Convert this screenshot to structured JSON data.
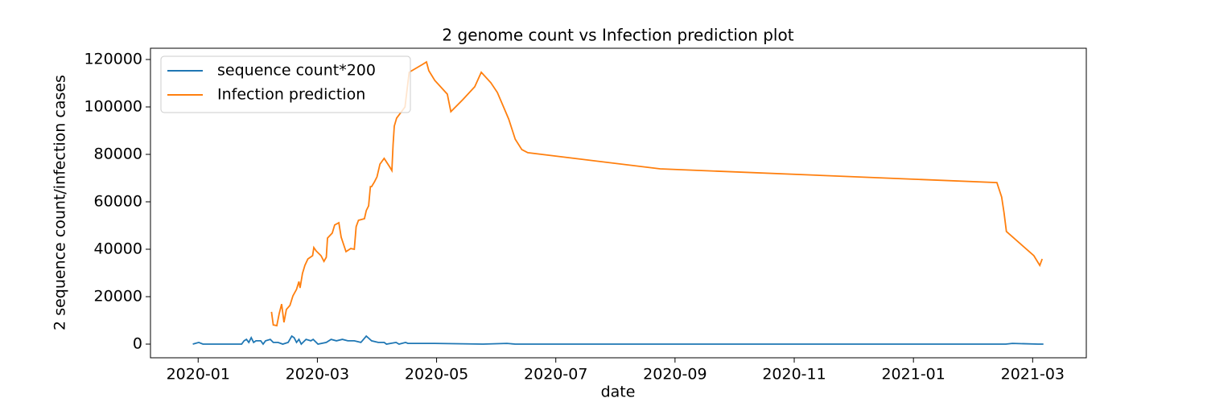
{
  "chart_data": {
    "type": "line",
    "title": "2 genome count vs Infection prediction plot",
    "xlabel": "date",
    "ylabel": "2 sequence count/infection cases",
    "xlim": [
      -0.8,
      14.9
    ],
    "xticks": [
      {
        "value": 0,
        "label": "2020-01"
      },
      {
        "value": 2,
        "label": "2020-03"
      },
      {
        "value": 4,
        "label": "2020-05"
      },
      {
        "value": 6,
        "label": "2020-07"
      },
      {
        "value": 8,
        "label": "2020-09"
      },
      {
        "value": 10,
        "label": "2020-11"
      },
      {
        "value": 12,
        "label": "2021-01"
      },
      {
        "value": 14,
        "label": "2021-03"
      }
    ],
    "ylim": [
      -5760,
      124750
    ],
    "yticks": [
      0,
      20000,
      40000,
      60000,
      80000,
      100000,
      120000
    ],
    "legend": "upper left",
    "series": [
      {
        "name": "sequence count*200",
        "color": "#1f77b4",
        "x": [
          -0.09,
          0.01,
          0.08,
          0.73,
          0.77,
          0.81,
          0.85,
          0.89,
          0.93,
          0.97,
          1.05,
          1.09,
          1.13,
          1.21,
          1.26,
          1.34,
          1.42,
          1.51,
          1.57,
          1.61,
          1.65,
          1.69,
          1.73,
          1.81,
          1.89,
          1.93,
          2.01,
          2.15,
          2.23,
          2.32,
          2.42,
          2.51,
          2.62,
          2.73,
          2.82,
          2.91,
          3.02,
          3.12,
          3.16,
          3.32,
          3.37,
          3.48,
          3.52,
          3.97,
          4.78,
          5.18,
          5.32,
          13.55,
          13.66,
          14.09,
          14.18
        ],
        "values": [
          0,
          700,
          0,
          0,
          1400,
          2000,
          700,
          2700,
          700,
          1400,
          1400,
          0,
          1400,
          2000,
          700,
          700,
          0,
          700,
          3400,
          2700,
          700,
          2000,
          0,
          2000,
          1400,
          2000,
          0,
          700,
          2000,
          1400,
          2000,
          1400,
          1400,
          700,
          3400,
          1400,
          700,
          700,
          0,
          700,
          0,
          700,
          300,
          300,
          0,
          300,
          0,
          0,
          300,
          0,
          0
        ]
      },
      {
        "name": "Infection prediction",
        "color": "#ff7f0e",
        "x": [
          1.23,
          1.26,
          1.32,
          1.36,
          1.4,
          1.44,
          1.48,
          1.54,
          1.59,
          1.65,
          1.69,
          1.71,
          1.75,
          1.79,
          1.84,
          1.92,
          1.94,
          1.98,
          2.06,
          2.11,
          2.15,
          2.17,
          2.25,
          2.29,
          2.36,
          2.4,
          2.48,
          2.56,
          2.62,
          2.65,
          2.69,
          2.79,
          2.82,
          2.86,
          2.89,
          2.91,
          2.96,
          3.0,
          3.05,
          3.12,
          3.21,
          3.25,
          3.27,
          3.29,
          3.33,
          3.47,
          3.54,
          3.77,
          3.83,
          3.87,
          3.97,
          4.18,
          4.24,
          4.44,
          4.64,
          4.75,
          4.91,
          5.02,
          5.21,
          5.32,
          5.43,
          5.53,
          7.75,
          13.4,
          13.48,
          13.52,
          13.56,
          14.02,
          14.12,
          14.16
        ],
        "values": [
          13600,
          8100,
          7800,
          12900,
          16900,
          9200,
          14600,
          16300,
          20300,
          23100,
          26400,
          23700,
          29800,
          33200,
          35900,
          37300,
          40700,
          39300,
          37300,
          34900,
          36600,
          44700,
          46800,
          50200,
          51200,
          45100,
          39000,
          40300,
          40000,
          49500,
          52200,
          52900,
          56300,
          58300,
          66400,
          66400,
          68500,
          70500,
          75900,
          78300,
          74900,
          73200,
          84100,
          91900,
          95300,
          100000,
          114600,
          118000,
          119000,
          115300,
          111200,
          105400,
          98000,
          103100,
          108500,
          114600,
          110200,
          106100,
          94900,
          86400,
          82000,
          80700,
          73900,
          68100,
          62000,
          55300,
          47500,
          37300,
          33200,
          35900
        ]
      }
    ]
  }
}
